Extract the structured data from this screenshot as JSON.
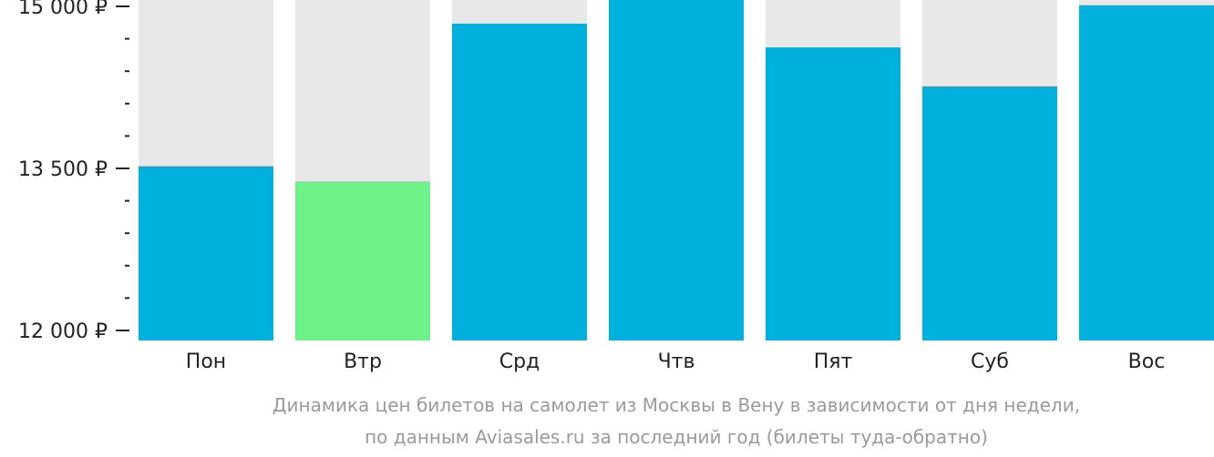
{
  "chart_data": {
    "type": "bar",
    "categories": [
      "Пон",
      "Втр",
      "Срд",
      "Чтв",
      "Пят",
      "Суб",
      "Вос"
    ],
    "values": [
      13520,
      13380,
      14840,
      15110,
      14620,
      14260,
      15010
    ],
    "highlight_index": 1,
    "ylim": [
      12000,
      15200
    ],
    "yticks": [
      {
        "value": 15000,
        "label": "15 000 ₽"
      },
      {
        "value": 13500,
        "label": "13 500 ₽"
      },
      {
        "value": 12000,
        "label": "12 000 ₽"
      }
    ],
    "minor_tick_step": 300,
    "grid": false,
    "caption": [
      "Динамика цен билетов на самолет из Москвы в Вену в зависимости от дня недели,",
      "по данным Aviasales.ru за последний год (билеты туда-обратно)"
    ],
    "colors": {
      "bar": "#00b0dd",
      "highlight": "#6cf286",
      "background_bar": "#e8e8e8",
      "axis": "#222222",
      "caption": "#9a9a9a"
    }
  }
}
